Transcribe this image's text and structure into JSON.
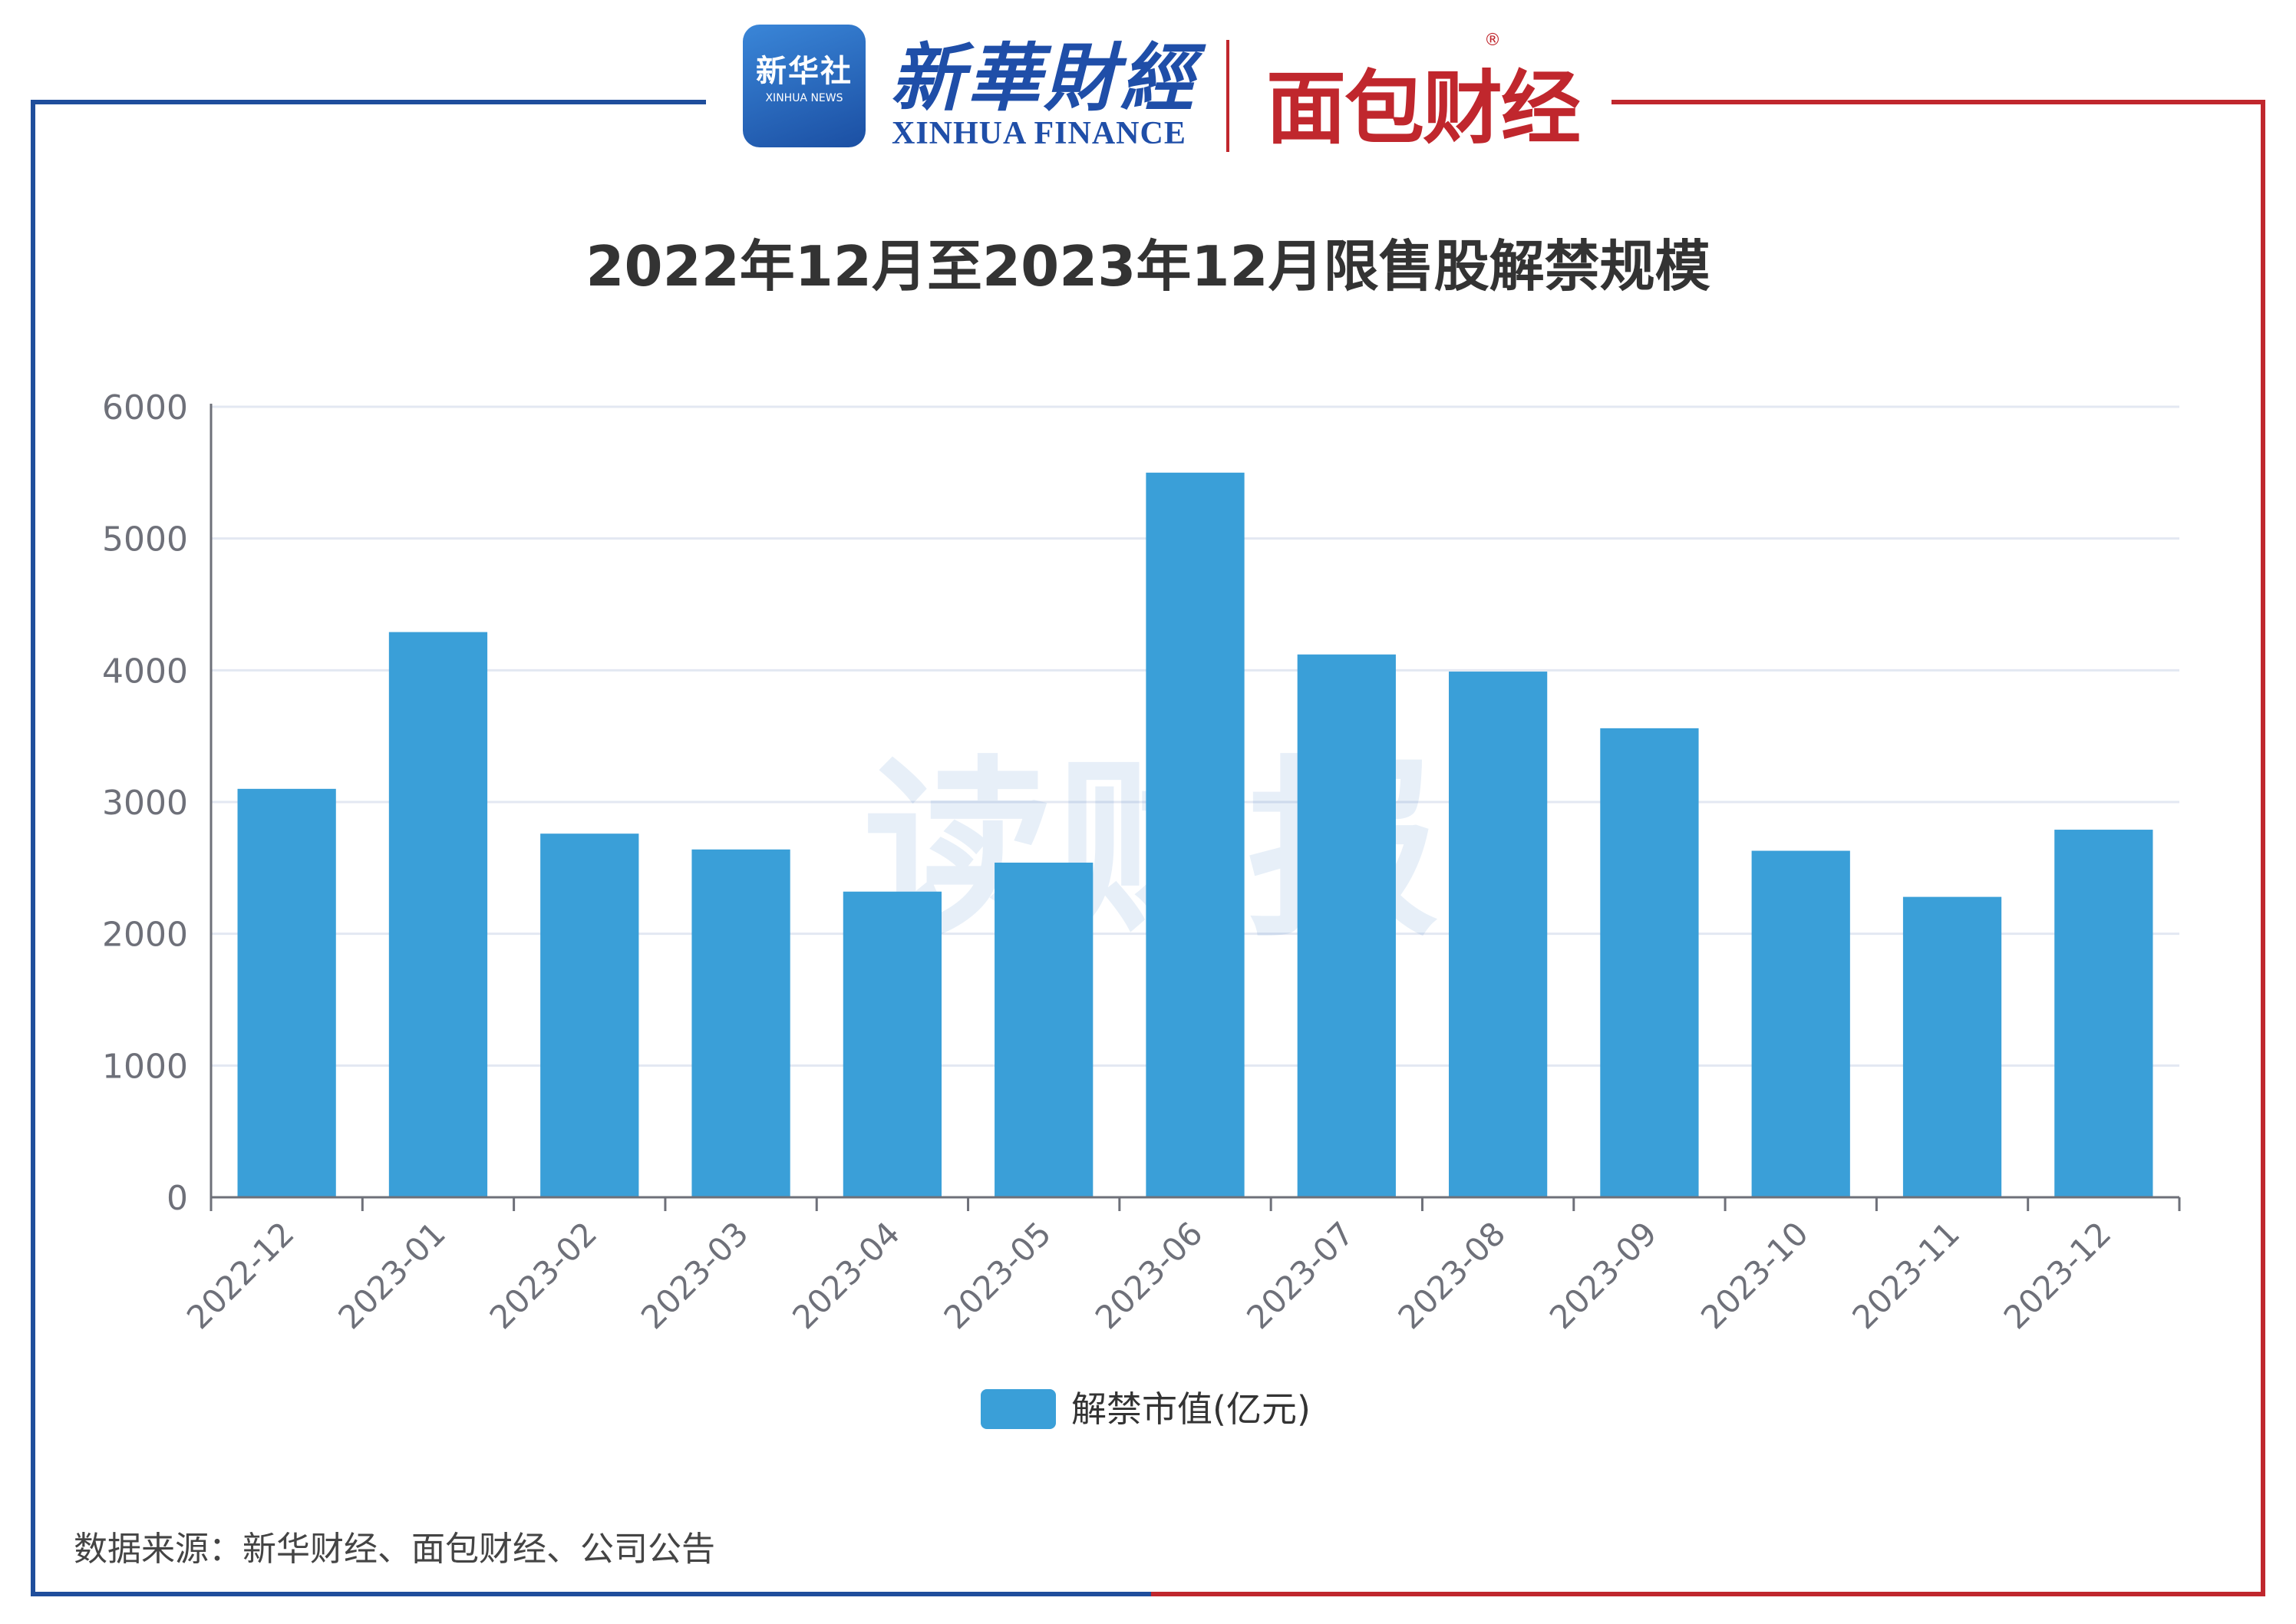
{
  "header": {
    "xinhua_badge_cn": "新华社",
    "xinhua_badge_en": "XINHUA NEWS",
    "xinhua_finance_cn": "新華財經",
    "xinhua_finance_en": "XINHUA FINANCE",
    "mianbao_logo": "面包财经",
    "registered_mark": "®"
  },
  "watermark": "读财报",
  "footer": {
    "source": "数据来源：新华财经、面包财经、公司公告"
  },
  "colors": {
    "bar": "#3a9fd8",
    "frame_left": "#1f4e9c",
    "frame_right": "#c0272d",
    "grid": "#e3e8f2",
    "axis": "#6e7079"
  },
  "chart_data": {
    "type": "bar",
    "title": "2022年12月至2023年12月限售股解禁规模",
    "categories": [
      "2022-12",
      "2023-01",
      "2023-02",
      "2023-03",
      "2023-04",
      "2023-05",
      "2023-06",
      "2023-07",
      "2023-08",
      "2023-09",
      "2023-10",
      "2023-11",
      "2023-12"
    ],
    "series": [
      {
        "name": "解禁市值(亿元)",
        "values": [
          3100,
          4290,
          2760,
          2640,
          2320,
          2540,
          5500,
          4120,
          3990,
          3560,
          2630,
          2280,
          2790
        ]
      }
    ],
    "y_ticks": [
      "0",
      "1000",
      "2000",
      "3000",
      "4000",
      "5000",
      "6000"
    ],
    "ylim": [
      0,
      6000
    ],
    "grid": true,
    "legend_position": "bottom-center"
  }
}
